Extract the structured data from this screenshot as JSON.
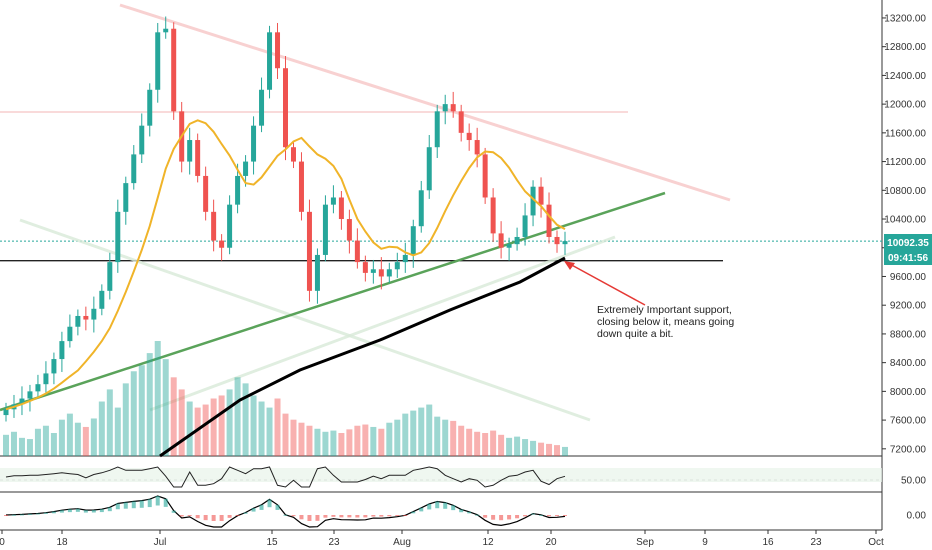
{
  "colors": {
    "up": "#26a69a",
    "down": "#ef5350",
    "ma_short": "#f0b429",
    "ma_long": "#000000",
    "trend_support": "#5aa35a",
    "trend_resistance": "#f7c6c6",
    "price_line": "#26a69a",
    "arrow": "#e53935",
    "rsi": "#222222",
    "macd_line": "#000000",
    "macd_signal": "#f0b429"
  },
  "chart_data": {
    "type": "line",
    "price_axis": {
      "ticks": [
        "13200.00",
        "12800.00",
        "12400.00",
        "12000.00",
        "11600.00",
        "11200.00",
        "10800.00",
        "10400.00",
        "10000.00",
        "9600.00",
        "9200.00",
        "8800.00",
        "8400.00",
        "8000.00",
        "7600.00",
        "7200.00"
      ],
      "ylim": [
        7100,
        13450
      ]
    },
    "time_axis": {
      "ticks": [
        "0",
        "18",
        "Jul",
        "15",
        "23",
        "Aug",
        "12",
        "20",
        "Sep",
        "9",
        "16",
        "23",
        "Oct"
      ]
    },
    "rsi_axis": {
      "ticks": [
        "50.00"
      ]
    },
    "macd_axis": {
      "ticks": [
        "0.00"
      ]
    },
    "current_price": {
      "label": "10092.35",
      "value": 10092.35
    },
    "countdown": {
      "label": "09:41:56"
    },
    "support_level": 9820,
    "candles_close": [
      7750,
      7820,
      7900,
      8000,
      8100,
      8250,
      8450,
      8700,
      8900,
      9050,
      9000,
      9150,
      9400,
      9800,
      10500,
      10900,
      11300,
      11700,
      12200,
      13000,
      13050,
      11900,
      11200,
      11500,
      11000,
      10500,
      10100,
      10000,
      10600,
      11000,
      11200,
      11700,
      12200,
      13000,
      12500,
      11400,
      11200,
      10500,
      9400,
      9900,
      10600,
      10700,
      10400,
      10100,
      9800,
      9650,
      9700,
      9600,
      9700,
      9800,
      9900,
      10300,
      10800,
      11400,
      11900,
      12000,
      11900,
      11600,
      11500,
      11300,
      10700,
      10200,
      10000,
      10050,
      10150,
      10450,
      10850,
      10600,
      10150,
      10050,
      10092
    ],
    "volume_bars": [
      35,
      40,
      30,
      28,
      45,
      50,
      38,
      60,
      70,
      55,
      48,
      62,
      90,
      110,
      80,
      120,
      140,
      150,
      170,
      190,
      160,
      130,
      110,
      90,
      80,
      85,
      95,
      100,
      110,
      130,
      120,
      100,
      90,
      80,
      95,
      70,
      60,
      55,
      50,
      45,
      40,
      42,
      38,
      44,
      50,
      52,
      48,
      45,
      55,
      60,
      70,
      75,
      80,
      85,
      65,
      60,
      58,
      50,
      45,
      40,
      38,
      42,
      35,
      30,
      32,
      28,
      25,
      22,
      20,
      18,
      15
    ]
  },
  "annotation": {
    "line1": "Extremely Important support,",
    "line2": "closing below it, means going",
    "line3": "down quite a bit."
  }
}
